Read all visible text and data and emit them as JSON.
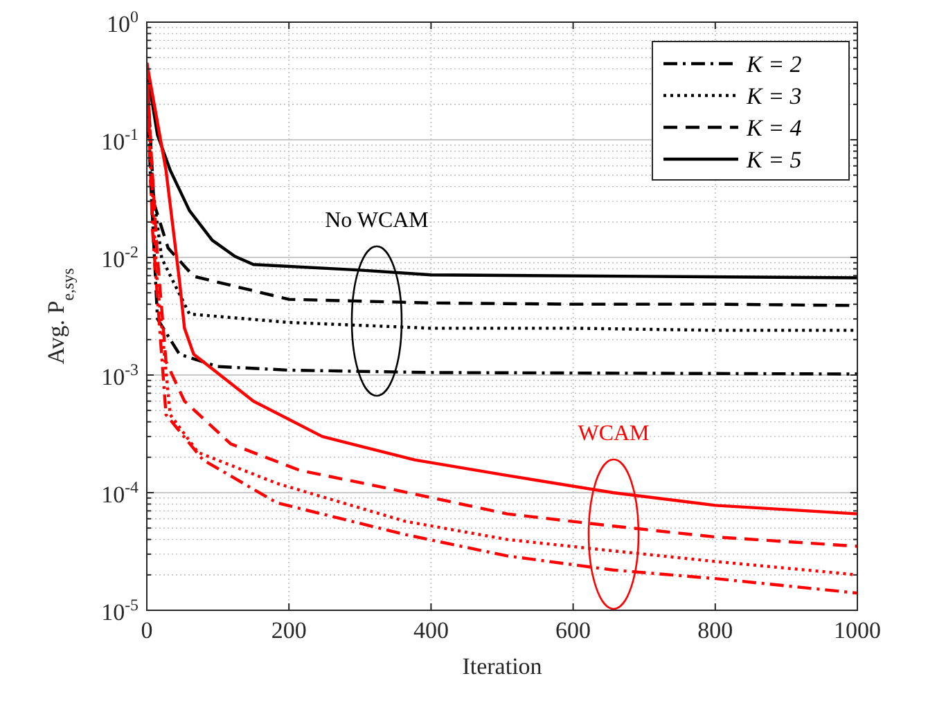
{
  "chart_data": {
    "type": "line",
    "xlabel": "Iteration",
    "ylabel": "Avg. P$_{e,sys}$",
    "log": "y",
    "xlim": [
      0,
      1000
    ],
    "xticks": [
      0,
      200,
      400,
      600,
      800,
      1000
    ],
    "ylim": [
      1e-05,
      1
    ],
    "yticks": [
      {
        "value": 1e-05,
        "label": "10$^{-5}$"
      },
      {
        "value": 0.0001,
        "label": "10$^{-4}$"
      },
      {
        "value": 0.001,
        "label": "10$^{-3}$"
      },
      {
        "value": 0.01,
        "label": "10$^{-2}$"
      },
      {
        "value": 0.1,
        "label": "10$^{-1}$"
      },
      {
        "value": 1,
        "label": "10$^{0}$"
      }
    ],
    "grid": true,
    "legend": "top right",
    "annotations": [
      "No WCAM",
      "WCAM"
    ],
    "series": [
      {
        "name": "K = 2",
        "color": "#000000",
        "line_style": "dashdot",
        "x": [
          0,
          5,
          15,
          46,
          100,
          200,
          400,
          600,
          800,
          1000
        ],
        "values": [
          0.4,
          0.05,
          0.003,
          0.0015,
          0.00118,
          0.0011,
          0.00105,
          0.00104,
          0.00103,
          0.00102
        ]
      },
      {
        "name": "K = 3",
        "color": "#000000",
        "line_style": "dotted",
        "x": [
          0,
          8,
          21,
          60,
          200,
          400,
          600,
          800,
          1000
        ],
        "values": [
          0.4,
          0.04,
          0.0098,
          0.0033,
          0.0028,
          0.0025,
          0.0025,
          0.0024,
          0.0024
        ]
      },
      {
        "name": "K = 4",
        "color": "#000000",
        "line_style": "dashed",
        "x": [
          0,
          10,
          30,
          66,
          200,
          400,
          600,
          800,
          1000
        ],
        "values": [
          0.4,
          0.029,
          0.012,
          0.0069,
          0.0044,
          0.0041,
          0.004,
          0.004,
          0.0039
        ]
      },
      {
        "name": "K = 5",
        "color": "#000000",
        "line_style": "solid",
        "x": [
          0,
          15,
          33,
          60,
          92,
          124,
          150,
          300,
          400,
          700,
          1000
        ],
        "values": [
          0.4,
          0.11,
          0.055,
          0.025,
          0.014,
          0.0102,
          0.0087,
          0.0078,
          0.0071,
          0.0069,
          0.0067
        ]
      },
      {
        "color": "#ff0000",
        "line_style": "dashdot",
        "x": [
          0,
          8,
          27,
          79,
          183,
          364,
          507,
          656,
          800,
          1000
        ],
        "values": [
          0.45,
          0.017,
          0.00046,
          0.00019,
          8.2e-05,
          4.4e-05,
          2.9e-05,
          2.2e-05,
          1.86e-05,
          1.4e-05
        ]
      },
      {
        "color": "#ff0000",
        "line_style": "dotted",
        "x": [
          0,
          5,
          14,
          33,
          72,
          183,
          364,
          507,
          656,
          800,
          1000
        ],
        "values": [
          0.45,
          0.08,
          0.0069,
          0.00046,
          0.00022,
          0.00012,
          5.7e-05,
          4e-05,
          3.2e-05,
          2.6e-05,
          2e-05
        ]
      },
      {
        "color": "#ff0000",
        "line_style": "dashed",
        "x": [
          0,
          5,
          15,
          27,
          53,
          118,
          215,
          345,
          507,
          656,
          800,
          1000
        ],
        "values": [
          0.45,
          0.1,
          0.01,
          0.0013,
          0.0006,
          0.00026,
          0.000155,
          0.000107,
          6.6e-05,
          5.2e-05,
          4.2e-05,
          3.5e-05
        ]
      },
      {
        "color": "#ff0000",
        "line_style": "solid",
        "x": [
          0,
          27,
          46,
          53,
          66,
          150,
          247,
          377,
          507,
          656,
          800,
          1000
        ],
        "values": [
          0.45,
          0.055,
          0.0063,
          0.0025,
          0.0015,
          0.0006,
          0.0003,
          0.00019,
          0.00014,
          0.0001,
          7.8e-05,
          6.6e-05
        ]
      }
    ]
  }
}
